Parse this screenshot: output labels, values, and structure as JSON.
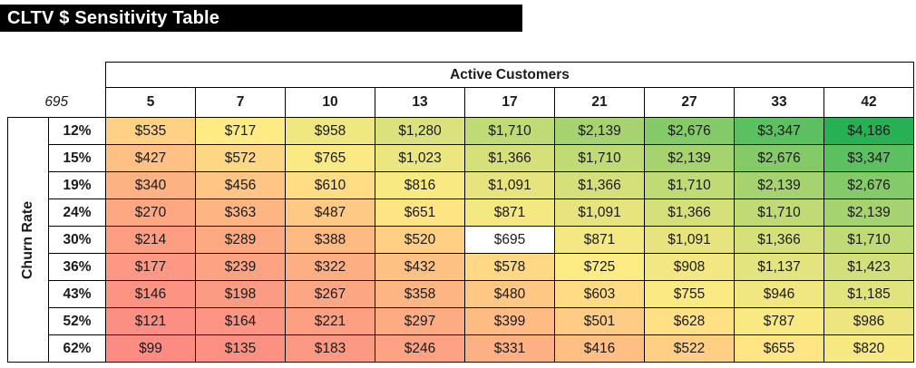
{
  "title": "CLTV $ Sensitivity Table",
  "chart_data": {
    "type": "heatmap",
    "title": "CLTV $ Sensitivity Table",
    "x_group_label": "Active Customers",
    "y_group_label": "Churn Rate",
    "x_labels": [
      "5",
      "7",
      "10",
      "13",
      "17",
      "21",
      "27",
      "33",
      "42"
    ],
    "y_labels": [
      "12%",
      "15%",
      "19%",
      "24%",
      "30%",
      "36%",
      "43%",
      "52%",
      "62%"
    ],
    "values": [
      [
        535,
        717,
        958,
        1280,
        1710,
        2139,
        2676,
        3347,
        4186
      ],
      [
        427,
        572,
        765,
        1023,
        1366,
        1710,
        2139,
        2676,
        3347
      ],
      [
        340,
        456,
        610,
        816,
        1091,
        1366,
        1710,
        2139,
        2676
      ],
      [
        270,
        363,
        487,
        651,
        871,
        1091,
        1366,
        1710,
        2139
      ],
      [
        214,
        289,
        388,
        520,
        695,
        871,
        1091,
        1366,
        1710
      ],
      [
        177,
        239,
        322,
        432,
        578,
        725,
        908,
        1137,
        1423
      ],
      [
        146,
        198,
        267,
        358,
        480,
        603,
        755,
        946,
        1185
      ],
      [
        121,
        164,
        221,
        297,
        399,
        501,
        628,
        787,
        986
      ],
      [
        99,
        135,
        183,
        246,
        331,
        416,
        522,
        655,
        820
      ]
    ],
    "value_prefix": "$",
    "base_case": {
      "corner_label": "695",
      "value": 695,
      "row_index": 4,
      "col_index": 4
    },
    "color_scale": {
      "min": "#FC8B83",
      "mid": "#FFEB84",
      "max": "#28B154",
      "midpoint": "median",
      "base_case_bg": "#FFFFFF"
    },
    "layout": {
      "legend": "none",
      "grid": "all-borders"
    }
  }
}
